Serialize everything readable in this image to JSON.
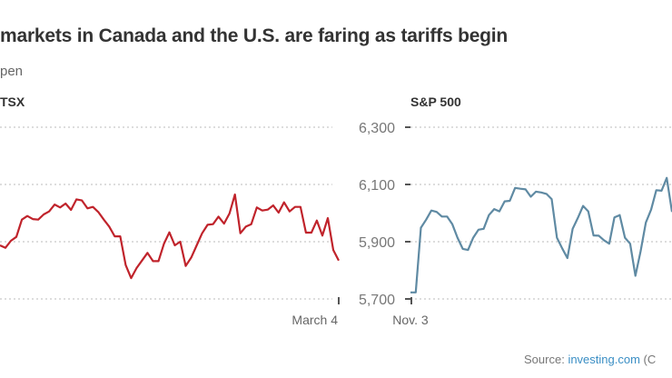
{
  "title": "markets in Canada and the U.S. are faring as tariffs begin",
  "subtitle": "pen",
  "source": {
    "label": "Source:",
    "link": "investing.com",
    "tail": "(C"
  },
  "chart_data": [
    {
      "type": "line",
      "title": "TSX",
      "color": "#c0232b",
      "x_end_label": "March 4",
      "ylim": [
        24000,
        25500
      ],
      "gridlines": [
        25500,
        25000,
        24500,
        24000
      ],
      "grid": true,
      "values": [
        24468,
        24447,
        24508,
        24542,
        24693,
        24725,
        24698,
        24693,
        24738,
        24764,
        24825,
        24799,
        24833,
        24778,
        24870,
        24860,
        24791,
        24804,
        24759,
        24693,
        24632,
        24547,
        24547,
        24296,
        24182,
        24270,
        24336,
        24402,
        24330,
        24330,
        24481,
        24582,
        24468,
        24500,
        24288,
        24362,
        24468,
        24574,
        24648,
        24653,
        24719,
        24658,
        24746,
        24913,
        24574,
        24632,
        24653,
        24799,
        24772,
        24780,
        24817,
        24754,
        24844,
        24764,
        24804,
        24804,
        24579,
        24579,
        24685,
        24553,
        24706,
        24428,
        24336
      ]
    },
    {
      "type": "line",
      "title": "S&P 500",
      "color": "#5f8aa3",
      "x_start_label": "Nov. 3",
      "ylim": [
        5700,
        6300
      ],
      "yticks": [
        "6,300",
        "6,100",
        "5,900",
        "5,700"
      ],
      "ytick_values": [
        6300,
        6100,
        5900,
        5700
      ],
      "grid": true,
      "values": [
        5723,
        5723,
        5949,
        5977,
        6009,
        6004,
        5988,
        5988,
        5961,
        5914,
        5875,
        5871,
        5914,
        5942,
        5945,
        5993,
        6014,
        6006,
        6041,
        6043,
        6088,
        6085,
        6083,
        6057,
        6075,
        6072,
        6067,
        6049,
        5914,
        5877,
        5843,
        5945,
        5983,
        6025,
        6006,
        5922,
        5921,
        5905,
        5893,
        5985,
        5993,
        5914,
        5893,
        5781,
        5866,
        5967,
        6012,
        6080,
        6078,
        6123,
        6004
      ]
    }
  ]
}
